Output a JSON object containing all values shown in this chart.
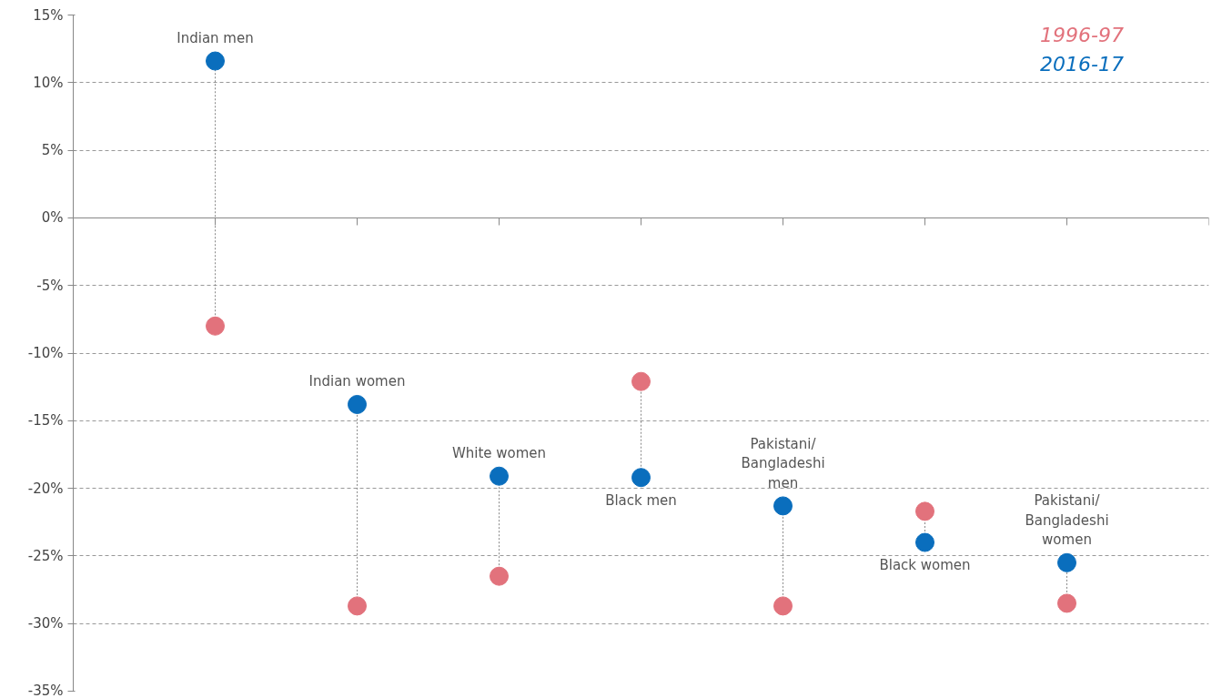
{
  "chart_data": {
    "type": "scatter",
    "categories": [
      "Indian men",
      "Indian women",
      "White women",
      "Black men",
      "Pakistani/Bangladeshi men",
      "Black women",
      "Pakistani/Bangladeshi women"
    ],
    "series": [
      {
        "name": "1996-97",
        "color": "#e2727c",
        "values": [
          -8.0,
          -28.7,
          -26.5,
          -12.1,
          -28.7,
          -21.7,
          -28.5
        ]
      },
      {
        "name": "2016-17",
        "color": "#0a6ebd",
        "values": [
          11.6,
          -13.8,
          -19.1,
          -19.2,
          -21.3,
          -24.0,
          -25.5
        ]
      }
    ],
    "ylim": [
      -35,
      15
    ],
    "yticks": [
      {
        "value": -35,
        "label": "-35%"
      },
      {
        "value": -30,
        "label": "-30%"
      },
      {
        "value": -25,
        "label": "-25%"
      },
      {
        "value": -20,
        "label": "-20%"
      },
      {
        "value": -15,
        "label": "-15%"
      },
      {
        "value": -10,
        "label": "-10%"
      },
      {
        "value": -5,
        "label": "-5%"
      },
      {
        "value": 0,
        "label": "0%"
      },
      {
        "value": 5,
        "label": "5%"
      },
      {
        "value": 10,
        "label": "10%"
      },
      {
        "value": 15,
        "label": "15%"
      }
    ],
    "grid": "y",
    "legend": "top right",
    "marker": "circle",
    "tick_labels": "y"
  }
}
